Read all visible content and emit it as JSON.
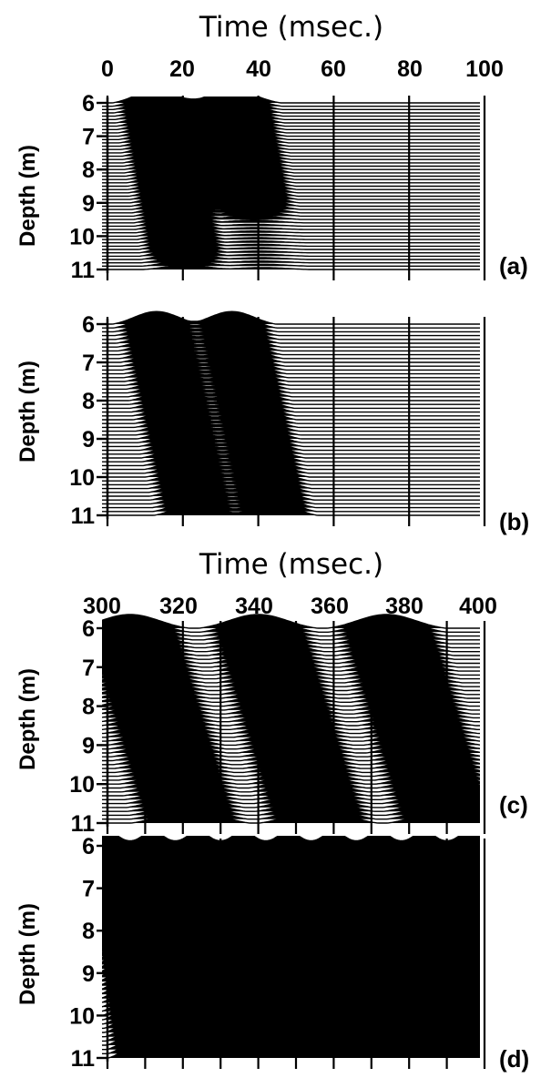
{
  "chart_data": [
    {
      "panel": "(a)",
      "type": "line",
      "subtype": "wiggle-trace seismogram (variable area)",
      "title": "Time (msec.)",
      "xlabel": "Time (msec.)",
      "ylabel": "Depth (m)",
      "xlim": [
        0,
        100
      ],
      "ylim": [
        6,
        11
      ],
      "x_ticks": [
        "0",
        "20",
        "40",
        "60",
        "80",
        "100"
      ],
      "y_ticks": [
        "6",
        "7",
        "8",
        "9",
        "10",
        "11"
      ],
      "trace_spacing_m": 0.1,
      "events": [
        {
          "arrival_at_top_ms": 13,
          "arrival_at_bottom_ms": 21,
          "pulse_width_ms": 9,
          "fill": "black",
          "fades_below_m": 10.5
        },
        {
          "arrival_at_top_ms": 33,
          "arrival_at_bottom_ms": 41,
          "pulse_width_ms": 10,
          "fill": "wiggle",
          "fades_below_m": 9.0
        }
      ],
      "grid": "vertical lines every 20 ms"
    },
    {
      "panel": "(b)",
      "type": "line",
      "subtype": "wiggle-trace seismogram (variable area)",
      "xlabel": "",
      "ylabel": "Depth (m)",
      "xlim": [
        0,
        100
      ],
      "ylim": [
        6,
        11
      ],
      "y_ticks": [
        "6",
        "7",
        "8",
        "9",
        "10",
        "11"
      ],
      "trace_spacing_m": 0.1,
      "events": [
        {
          "arrival_at_top_ms": 13,
          "arrival_at_bottom_ms": 24,
          "pulse_width_ms": 9,
          "fill": "black",
          "fades_below_m": 11.0
        },
        {
          "arrival_at_top_ms": 33,
          "arrival_at_bottom_ms": 44,
          "pulse_width_ms": 9,
          "fill": "black",
          "fades_below_m": 11.0
        }
      ],
      "grid": "vertical lines every 20 ms"
    },
    {
      "panel": "(c)",
      "type": "line",
      "subtype": "wiggle-trace seismogram (variable area)",
      "title": "Time (msec.)",
      "xlabel": "Time (msec.)",
      "ylabel": "Depth (m)",
      "xlim": [
        300,
        400
      ],
      "ylim": [
        6,
        11
      ],
      "x_ticks": [
        "300",
        "320",
        "340",
        "360",
        "380",
        "400"
      ],
      "y_ticks": [
        "6",
        "7",
        "8",
        "9",
        "10",
        "11"
      ],
      "trace_spacing_m": 0.1,
      "events": [
        {
          "arrival_at_top_ms": 306,
          "arrival_at_bottom_ms": 322,
          "pulse_width_ms": 12,
          "fill": "black"
        },
        {
          "arrival_at_top_ms": 340,
          "arrival_at_bottom_ms": 356,
          "pulse_width_ms": 12,
          "fill": "black"
        },
        {
          "arrival_at_top_ms": 374,
          "arrival_at_bottom_ms": 390,
          "pulse_width_ms": 12,
          "fill": "black"
        }
      ],
      "grid": "vertical lines every 10 ms"
    },
    {
      "panel": "(d)",
      "type": "line",
      "subtype": "wiggle-trace seismogram (variable area)",
      "xlabel": "",
      "ylabel": "Depth (m)",
      "xlim": [
        300,
        400
      ],
      "ylim": [
        6,
        11
      ],
      "y_ticks": [
        "6",
        "7",
        "8",
        "9",
        "10",
        "11"
      ],
      "trace_spacing_m": 0.1,
      "events": [
        {
          "arrival_at_top_ms": 300,
          "arrival_at_bottom_ms": 308,
          "pulse_width_ms": 6,
          "fill": "hatched"
        },
        {
          "arrival_at_top_ms": 312,
          "arrival_at_bottom_ms": 320,
          "pulse_width_ms": 6,
          "fill": "hatched"
        },
        {
          "arrival_at_top_ms": 324,
          "arrival_at_bottom_ms": 332,
          "pulse_width_ms": 6,
          "fill": "hatched"
        },
        {
          "arrival_at_top_ms": 336,
          "arrival_at_bottom_ms": 344,
          "pulse_width_ms": 6,
          "fill": "hatched"
        },
        {
          "arrival_at_top_ms": 348,
          "arrival_at_bottom_ms": 356,
          "pulse_width_ms": 6,
          "fill": "hatched"
        },
        {
          "arrival_at_top_ms": 360,
          "arrival_at_bottom_ms": 368,
          "pulse_width_ms": 6,
          "fill": "hatched"
        },
        {
          "arrival_at_top_ms": 372,
          "arrival_at_bottom_ms": 380,
          "pulse_width_ms": 6,
          "fill": "hatched"
        },
        {
          "arrival_at_top_ms": 384,
          "arrival_at_bottom_ms": 392,
          "pulse_width_ms": 6,
          "fill": "hatched"
        },
        {
          "arrival_at_top_ms": 396,
          "arrival_at_bottom_ms": 404,
          "pulse_width_ms": 6,
          "fill": "hatched"
        }
      ],
      "grid": "vertical lines every 10 ms"
    }
  ]
}
